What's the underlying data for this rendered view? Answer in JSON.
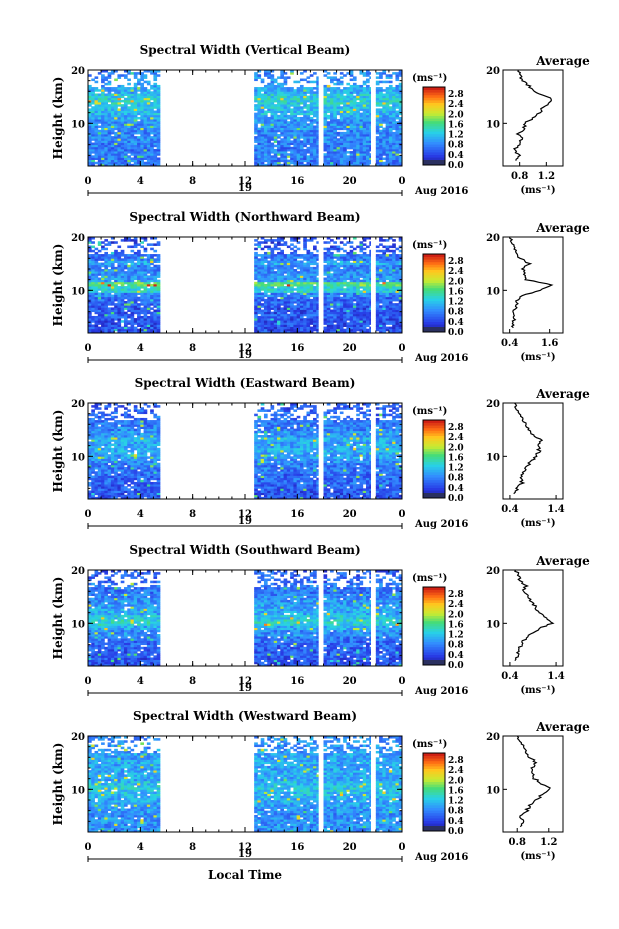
{
  "figure": {
    "xlabel": "Local Time"
  },
  "chart_data": [
    {
      "type": "heatmap",
      "title": "Spectral Width (Vertical Beam)",
      "ylabel": "Height (km)",
      "yticks": [
        "20",
        "10"
      ],
      "ylim": [
        2,
        20
      ],
      "xticks": [
        "0",
        "4",
        "8",
        "12",
        "16",
        "20",
        "0"
      ],
      "xlim": [
        0,
        24
      ],
      "date_day": "19",
      "date_label": "Aug 2016",
      "data_segments": [
        [
          0,
          5.5
        ],
        [
          12.7,
          17.6
        ],
        [
          18.0,
          21.6
        ],
        [
          22.0,
          24
        ]
      ],
      "colorbar": {
        "unit": "(ms⁻¹)",
        "ticks": [
          "2.8",
          "2.4",
          "2.0",
          "1.6",
          "1.2",
          "0.8",
          "0.4",
          "0.0"
        ],
        "range": [
          0,
          3.0
        ]
      },
      "average": {
        "title": "Average",
        "xlabel": "(ms⁻¹)",
        "xticks": [
          "0.8",
          "1.2"
        ],
        "yticks": [
          "20",
          "10"
        ],
        "xlim": [
          0.55,
          1.45
        ],
        "heights": [
          3,
          4,
          5,
          6,
          7,
          8,
          9,
          10,
          11,
          12,
          13,
          14,
          15,
          16,
          17,
          18,
          19,
          20
        ],
        "values": [
          0.74,
          0.8,
          0.72,
          0.78,
          0.84,
          0.78,
          0.88,
          0.86,
          1.0,
          1.1,
          1.14,
          1.28,
          1.22,
          1.02,
          0.94,
          0.86,
          0.8,
          0.78
        ]
      }
    },
    {
      "type": "heatmap",
      "title": "Spectral Width (Northward Beam)",
      "ylabel": "Height (km)",
      "yticks": [
        "20",
        "10"
      ],
      "ylim": [
        2,
        20
      ],
      "xticks": [
        "0",
        "4",
        "8",
        "12",
        "16",
        "20",
        "0"
      ],
      "xlim": [
        0,
        24
      ],
      "date_day": "19",
      "date_label": "Aug 2016",
      "data_segments": [
        [
          0,
          5.5
        ],
        [
          12.7,
          17.6
        ],
        [
          18.0,
          21.6
        ],
        [
          22.0,
          24
        ]
      ],
      "colorbar": {
        "unit": "(ms⁻¹)",
        "ticks": [
          "2.8",
          "2.4",
          "2.0",
          "1.6",
          "1.2",
          "0.8",
          "0.4",
          "0.0"
        ],
        "range": [
          0,
          3.0
        ]
      },
      "average": {
        "title": "Average",
        "xlabel": "(ms⁻¹)",
        "xticks": [
          "0.4",
          "1.6"
        ],
        "yticks": [
          "20",
          "10"
        ],
        "xlim": [
          0.2,
          2.0
        ],
        "heights": [
          3,
          4,
          5,
          6,
          7,
          8,
          9,
          10,
          11,
          12,
          13,
          14,
          15,
          16,
          17,
          18,
          19,
          20
        ],
        "values": [
          0.5,
          0.48,
          0.56,
          0.52,
          0.58,
          0.62,
          0.8,
          1.3,
          1.65,
          0.9,
          0.86,
          0.8,
          1.0,
          0.72,
          0.6,
          0.55,
          0.48,
          0.4
        ]
      }
    },
    {
      "type": "heatmap",
      "title": "Spectral Width (Eastward Beam)",
      "ylabel": "Height (km)",
      "yticks": [
        "20",
        "10"
      ],
      "ylim": [
        2,
        20
      ],
      "xticks": [
        "0",
        "4",
        "8",
        "12",
        "16",
        "20",
        "0"
      ],
      "xlim": [
        0,
        24
      ],
      "date_day": "19",
      "date_label": "Aug 2016",
      "data_segments": [
        [
          0,
          5.5
        ],
        [
          12.7,
          17.6
        ],
        [
          18.0,
          21.6
        ],
        [
          22.0,
          24
        ]
      ],
      "colorbar": {
        "unit": "(ms⁻¹)",
        "ticks": [
          "2.8",
          "2.4",
          "2.0",
          "1.6",
          "1.2",
          "0.8",
          "0.4",
          "0.0"
        ],
        "range": [
          0,
          3.0
        ]
      },
      "average": {
        "title": "Average",
        "xlabel": "(ms⁻¹)",
        "xticks": [
          "0.4",
          "1.4"
        ],
        "yticks": [
          "20",
          "10"
        ],
        "xlim": [
          0.25,
          1.55
        ],
        "heights": [
          3,
          4,
          5,
          6,
          7,
          8,
          9,
          10,
          11,
          12,
          13,
          14,
          15,
          16,
          17,
          18,
          19,
          20
        ],
        "values": [
          0.52,
          0.56,
          0.66,
          0.62,
          0.7,
          0.74,
          0.86,
          0.96,
          1.04,
          1.0,
          1.08,
          0.9,
          0.8,
          0.74,
          0.66,
          0.62,
          0.55,
          0.5
        ]
      }
    },
    {
      "type": "heatmap",
      "title": "Spectral Width (Southward Beam)",
      "ylabel": "Height (km)",
      "yticks": [
        "20",
        "10"
      ],
      "ylim": [
        2,
        20
      ],
      "xticks": [
        "0",
        "4",
        "8",
        "12",
        "16",
        "20",
        "0"
      ],
      "xlim": [
        0,
        24
      ],
      "date_day": "19",
      "date_label": "Aug 2016",
      "data_segments": [
        [
          0,
          5.5
        ],
        [
          12.7,
          17.6
        ],
        [
          18.0,
          21.6
        ],
        [
          22.0,
          24
        ]
      ],
      "colorbar": {
        "unit": "(ms⁻¹)",
        "ticks": [
          "2.8",
          "2.4",
          "2.0",
          "1.6",
          "1.2",
          "0.8",
          "0.4",
          "0.0"
        ],
        "range": [
          0,
          3.0
        ]
      },
      "average": {
        "title": "Average",
        "xlabel": "(ms⁻¹)",
        "xticks": [
          "0.4",
          "1.4"
        ],
        "yticks": [
          "20",
          "10"
        ],
        "xlim": [
          0.25,
          1.55
        ],
        "heights": [
          3,
          4,
          5,
          6,
          7,
          8,
          9,
          10,
          11,
          12,
          13,
          14,
          15,
          16,
          17,
          18,
          19,
          20
        ],
        "values": [
          0.52,
          0.55,
          0.6,
          0.64,
          0.72,
          0.86,
          1.02,
          1.3,
          1.2,
          1.02,
          0.96,
          0.88,
          0.8,
          0.7,
          0.74,
          0.62,
          0.58,
          0.52
        ]
      }
    },
    {
      "type": "heatmap",
      "title": "Spectral Width (Westward Beam)",
      "ylabel": "Height (km)",
      "yticks": [
        "20",
        "10"
      ],
      "ylim": [
        2,
        20
      ],
      "xticks": [
        "0",
        "4",
        "8",
        "12",
        "16",
        "20",
        "0"
      ],
      "xlim": [
        0,
        24
      ],
      "date_day": "19",
      "date_label": "Aug 2016",
      "data_segments": [
        [
          0,
          5.5
        ],
        [
          12.7,
          17.6
        ],
        [
          18.0,
          21.6
        ],
        [
          22.0,
          24
        ]
      ],
      "colorbar": {
        "unit": "(ms⁻¹)",
        "ticks": [
          "2.8",
          "2.4",
          "2.0",
          "1.6",
          "1.2",
          "0.8",
          "0.4",
          "0.0"
        ],
        "range": [
          0,
          3.0
        ]
      },
      "average": {
        "title": "Average",
        "xlabel": "(ms⁻¹)",
        "xticks": [
          "0.8",
          "1.2"
        ],
        "yticks": [
          "20",
          "10"
        ],
        "xlim": [
          0.62,
          1.38
        ],
        "heights": [
          3,
          4,
          5,
          6,
          7,
          8,
          9,
          10,
          11,
          12,
          13,
          14,
          15,
          16,
          17,
          18,
          19,
          20
        ],
        "values": [
          0.86,
          0.88,
          0.84,
          0.92,
          0.96,
          1.04,
          1.12,
          1.22,
          1.12,
          1.02,
          1.0,
          0.98,
          1.04,
          0.96,
          0.92,
          0.88,
          0.84,
          0.8
        ]
      }
    }
  ]
}
